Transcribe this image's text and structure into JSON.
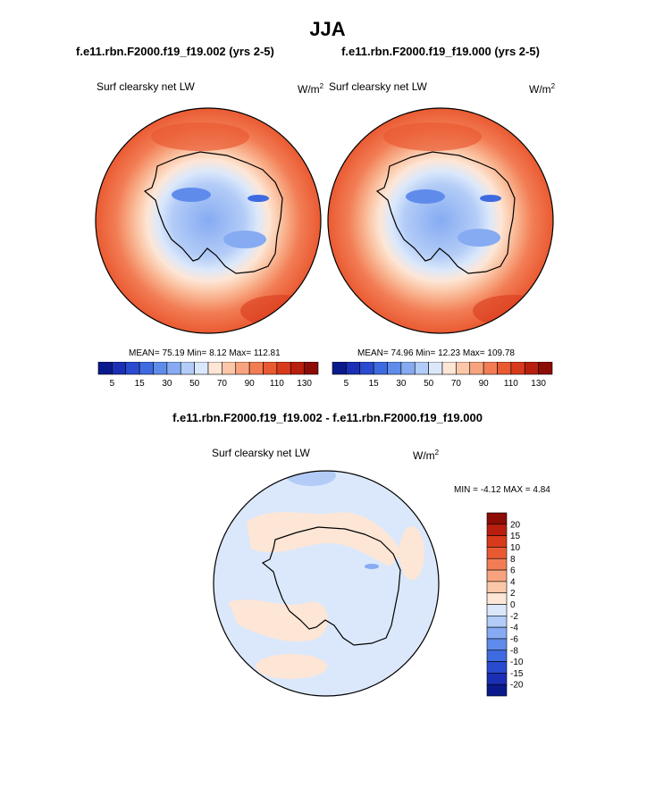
{
  "page_title": "JJA",
  "chart_data": [
    {
      "type": "polar-contour-map",
      "title": "f.e11.rbn.F2000.f19_f19.002 (yrs 2-5)",
      "variable": "Surf clearsky net LW",
      "units": "W/m",
      "units_exp": "2",
      "stats": {
        "mean_label": "MEAN=",
        "mean": "75.19",
        "min_label": "Min=",
        "min": "8.12",
        "max_label": "Max=",
        "max": "112.81"
      },
      "colorbar": {
        "levels": [
          5,
          10,
          15,
          20,
          30,
          40,
          50,
          60,
          70,
          80,
          90,
          100,
          110,
          120,
          130
        ],
        "tick_labels": [
          "5",
          "15",
          "30",
          "50",
          "70",
          "90",
          "110",
          "130"
        ],
        "colors": [
          "#0a1a8c",
          "#1b2fb4",
          "#2a4bd0",
          "#3f6be0",
          "#5f8ceb",
          "#86abf2",
          "#b3ccf7",
          "#dbe8fb",
          "#fde6d6",
          "#fbc7a8",
          "#f7a47e",
          "#f27d55",
          "#ea5a32",
          "#d83a1c",
          "#b81f0f",
          "#8c0c06"
        ]
      }
    },
    {
      "type": "polar-contour-map",
      "title": "f.e11.rbn.F2000.f19_f19.000 (yrs 2-5)",
      "variable": "Surf clearsky net LW",
      "units": "W/m",
      "units_exp": "2",
      "stats": {
        "mean_label": "MEAN=",
        "mean": "74.96",
        "min_label": "Min=",
        "min": "12.23",
        "max_label": "Max=",
        "max": "109.78"
      },
      "colorbar": {
        "levels": [
          5,
          10,
          15,
          20,
          30,
          40,
          50,
          60,
          70,
          80,
          90,
          100,
          110,
          120,
          130
        ],
        "tick_labels": [
          "5",
          "15",
          "30",
          "50",
          "70",
          "90",
          "110",
          "130"
        ],
        "colors": [
          "#0a1a8c",
          "#1b2fb4",
          "#2a4bd0",
          "#3f6be0",
          "#5f8ceb",
          "#86abf2",
          "#b3ccf7",
          "#dbe8fb",
          "#fde6d6",
          "#fbc7a8",
          "#f7a47e",
          "#f27d55",
          "#ea5a32",
          "#d83a1c",
          "#b81f0f",
          "#8c0c06"
        ]
      }
    },
    {
      "type": "polar-contour-map",
      "title": "f.e11.rbn.F2000.f19_f19.002 - f.e11.rbn.F2000.f19_f19.000",
      "variable": "Surf clearsky net LW",
      "units": "W/m",
      "units_exp": "2",
      "stats": {
        "min_label": "MIN =",
        "min": "-4.12",
        "max_label": "MAX =",
        "max": "4.84"
      },
      "colorbar": {
        "levels": [
          20,
          15,
          10,
          8,
          6,
          4,
          2,
          0,
          -2,
          -4,
          -6,
          -8,
          -10,
          -15,
          -20
        ],
        "tick_labels": [
          "20",
          "15",
          "10",
          "8",
          "6",
          "4",
          "2",
          "0",
          "-2",
          "-4",
          "-6",
          "-8",
          "-10",
          "-15",
          "-20"
        ],
        "colors": [
          "#8c0c06",
          "#b81f0f",
          "#d83a1c",
          "#ea5a32",
          "#f27d55",
          "#f7a47e",
          "#fbc7a8",
          "#fde6d6",
          "#dbe8fb",
          "#b3ccf7",
          "#86abf2",
          "#5f8ceb",
          "#3f6be0",
          "#2a4bd0",
          "#1b2fb4",
          "#0a1a8c"
        ]
      }
    }
  ]
}
